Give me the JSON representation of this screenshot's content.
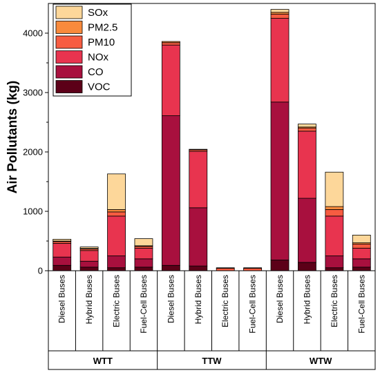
{
  "chart_data": {
    "type": "bar",
    "stacked": true,
    "ylabel": "Air Pollutants (kg)",
    "ylim": [
      0,
      4500
    ],
    "yticks": [
      0,
      1000,
      2000,
      3000,
      4000
    ],
    "ytick_labels": [
      "0",
      "1000",
      "2000",
      "3000",
      "4000"
    ],
    "groups": [
      {
        "label": "WTT",
        "categories": [
          "Diesel Buses",
          "Hybrid Buses",
          "Electric Buses",
          "Fuel-Cell Buses"
        ]
      },
      {
        "label": "TTW",
        "categories": [
          "Diesel Buses",
          "Hybrid Buses",
          "Electric Buses",
          "Fuel-Cell Buses"
        ]
      },
      {
        "label": "WTW",
        "categories": [
          "Diesel Buses",
          "Hybrid Buses",
          "Electric Buses",
          "Fuel-Cell Buses"
        ]
      }
    ],
    "series": [
      {
        "name": "VOC",
        "color": "#5c0018",
        "values": [
          90,
          60,
          50,
          60,
          90,
          80,
          0,
          0,
          180,
          140,
          50,
          60
        ]
      },
      {
        "name": "CO",
        "color": "#a8103e",
        "values": [
          140,
          100,
          200,
          140,
          2520,
          980,
          0,
          0,
          2660,
          1080,
          200,
          140
        ]
      },
      {
        "name": "NOx",
        "color": "#e8344f",
        "values": [
          230,
          180,
          670,
          180,
          1190,
          950,
          0,
          0,
          1410,
          1130,
          670,
          180
        ]
      },
      {
        "name": "PM10",
        "color": "#f75c41",
        "values": [
          30,
          25,
          70,
          30,
          40,
          25,
          40,
          40,
          70,
          50,
          110,
          70
        ]
      },
      {
        "name": "PM2.5",
        "color": "#f98a3c",
        "values": [
          10,
          10,
          40,
          10,
          20,
          10,
          10,
          10,
          30,
          20,
          50,
          20
        ]
      },
      {
        "name": "SOx",
        "color": "#fdd79a",
        "values": [
          30,
          25,
          600,
          120,
          0,
          0,
          0,
          0,
          50,
          50,
          580,
          130
        ]
      }
    ],
    "legend_position": "top-left"
  }
}
